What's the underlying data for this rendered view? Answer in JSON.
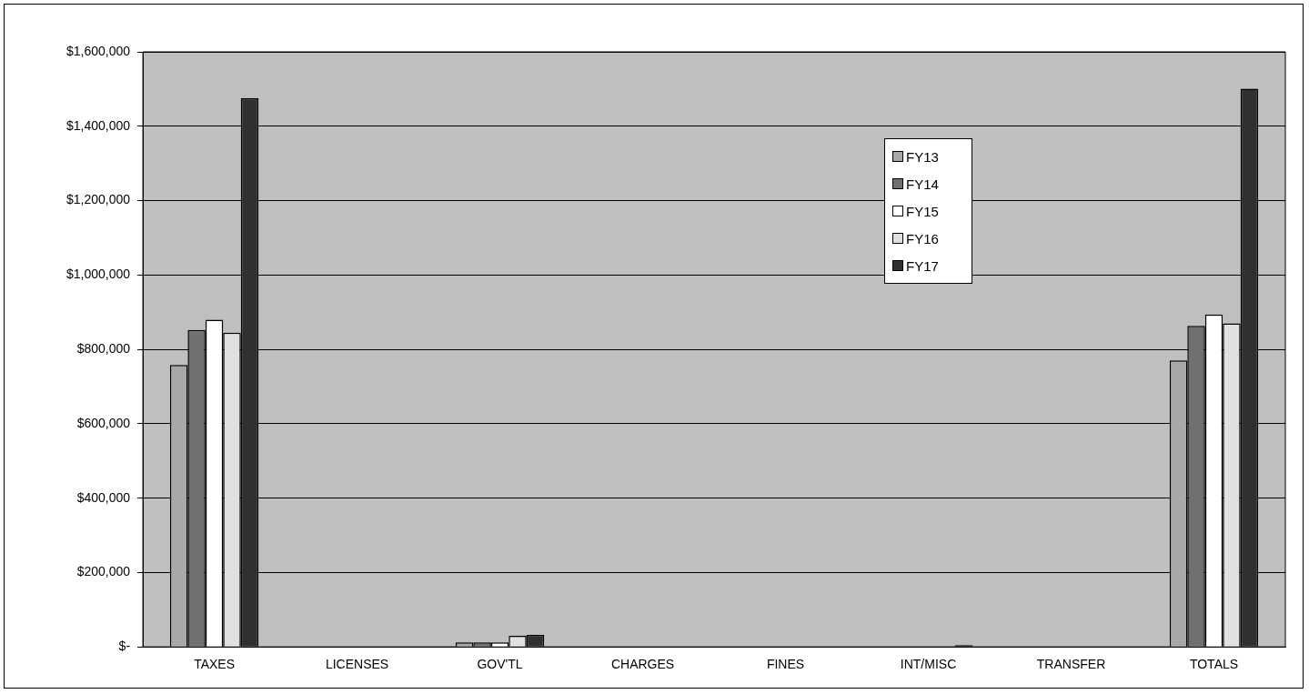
{
  "chart_data": {
    "type": "bar",
    "categories": [
      "TAXES",
      "LICENSES",
      "GOV'TL",
      "CHARGES",
      "FINES",
      "INT/MISC",
      "TRANSFER",
      "TOTALS"
    ],
    "series": [
      {
        "name": "FY13",
        "color": "#a8a8a8",
        "values": [
          758000,
          0,
          12000,
          0,
          0,
          0,
          0,
          770000
        ]
      },
      {
        "name": "FY14",
        "color": "#707070",
        "values": [
          852000,
          0,
          12000,
          0,
          0,
          0,
          0,
          863000
        ]
      },
      {
        "name": "FY15",
        "color": "#ffffff",
        "values": [
          880000,
          0,
          12000,
          0,
          0,
          0,
          0,
          894000
        ]
      },
      {
        "name": "FY16",
        "color": "#e0e0e0",
        "values": [
          845000,
          0,
          30000,
          0,
          0,
          null,
          0,
          870000
        ]
      },
      {
        "name": "FY17",
        "color": "#303030",
        "values": [
          1475000,
          0,
          32000,
          0,
          0,
          5000,
          0,
          1501000
        ]
      }
    ],
    "ylim": [
      0,
      1600000
    ],
    "yticks": [
      {
        "value": 0,
        "label": "$-"
      },
      {
        "value": 200000,
        "label": "$200,000"
      },
      {
        "value": 400000,
        "label": "$400,000"
      },
      {
        "value": 600000,
        "label": "$600,000"
      },
      {
        "value": 800000,
        "label": "$800,000"
      },
      {
        "value": 1000000,
        "label": "$1,000,000"
      },
      {
        "value": 1200000,
        "label": "$1,200,000"
      },
      {
        "value": 1400000,
        "label": "$1,400,000"
      },
      {
        "value": 1600000,
        "label": "$1,600,000"
      }
    ],
    "grid": "y",
    "legend": "top right"
  }
}
